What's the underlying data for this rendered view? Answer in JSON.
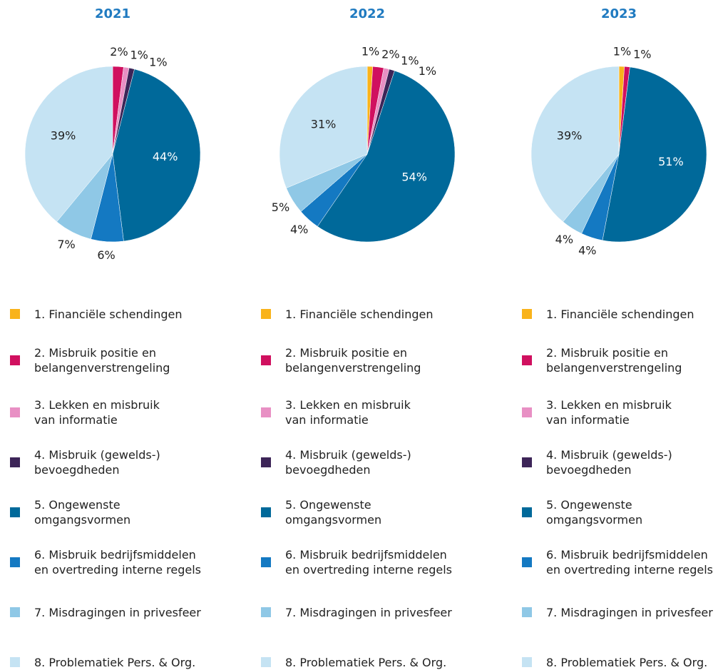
{
  "chart_data": [
    {
      "type": "pie",
      "title": "2021",
      "categories": [
        "1. Financiële schendingen",
        "2. Misbruik positie en\n belangenverstrengeling",
        "3. Lekken en misbruik\nvan informatie",
        "4. Misbruik (gewelds-)\nbevoegdheden",
        "5. Ongewenste\nomgangsvormen",
        "6. Misbruik bedrijfsmiddelen\nen overtreding interne regels",
        "7. Misdragingen in privesfeer",
        "8. Problematiek Pers. & Org."
      ],
      "values": [
        0,
        2,
        1,
        1,
        44,
        6,
        7,
        39
      ],
      "value_labels": [
        null,
        "2%",
        "1%",
        "1%",
        "44%",
        "6%",
        "7%",
        "39%"
      ],
      "colors": [
        "#f9b31b",
        "#d0105f",
        "#e890c4",
        "#3d2558",
        "#00699a",
        "#1479c2",
        "#8fc8e6",
        "#c5e3f3"
      ]
    },
    {
      "type": "pie",
      "title": "2022",
      "categories": [
        "1. Financiële schendingen",
        "2. Misbruik positie en\n belangenverstrengeling",
        "3. Lekken en misbruik\nvan informatie",
        "4. Misbruik (gewelds-)\nbevoegdheden",
        "5. Ongewenste\nomgangsvormen",
        "6. Misbruik bedrijfsmiddelen\nen overtreding interne regels",
        "7. Misdragingen in privesfeer",
        "8. Problematiek Pers. & Org."
      ],
      "values": [
        1,
        2,
        1,
        1,
        54,
        4,
        5,
        31
      ],
      "value_labels": [
        "1%",
        "2%",
        "1%",
        "1%",
        "54%",
        "4%",
        "5%",
        "31%"
      ],
      "colors": [
        "#f9b31b",
        "#d0105f",
        "#e890c4",
        "#3d2558",
        "#00699a",
        "#1479c2",
        "#8fc8e6",
        "#c5e3f3"
      ]
    },
    {
      "type": "pie",
      "title": "2023",
      "categories": [
        "1. Financiële schendingen",
        "2. Misbruik positie en\n belangenverstrengeling",
        "3. Lekken en misbruik\nvan informatie",
        "4. Misbruik (gewelds-)\nbevoegdheden",
        "5. Ongewenste\nomgangsvormen",
        "6. Misbruik bedrijfsmiddelen\nen overtreding interne regels",
        "7. Misdragingen in privesfeer",
        "8. Problematiek Pers. & Org."
      ],
      "values": [
        1,
        1,
        0,
        0,
        51,
        4,
        4,
        39
      ],
      "value_labels": [
        "1%",
        "1%",
        null,
        null,
        "51%",
        "4%",
        "4%",
        "39%"
      ],
      "colors": [
        "#f9b31b",
        "#d0105f",
        "#e890c4",
        "#3d2558",
        "#00699a",
        "#1479c2",
        "#8fc8e6",
        "#c5e3f3"
      ]
    }
  ]
}
